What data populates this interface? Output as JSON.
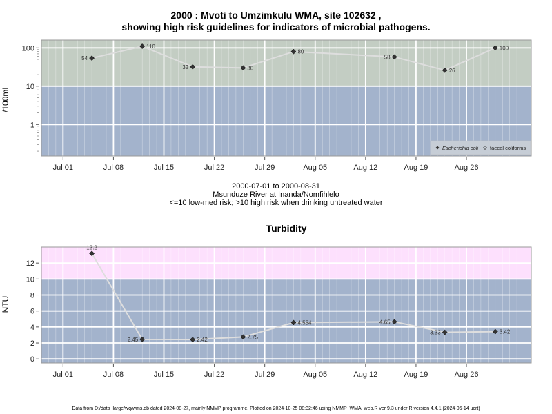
{
  "title_line1": "2000 : Mvoti to Umzimkulu WMA, site 102632 ,",
  "title_line2": "showing high risk guidelines for indicators of microbial pathogens.",
  "middle": {
    "date_range": "2000-07-01 to 2000-08-31",
    "site_name": "Msunduze River at Inanda/Nomfihlelo",
    "risk_note": "<=10 low-med risk; >10 high risk when drinking untreated water"
  },
  "turbidity_title": "Turbidity",
  "footer": "Data from D:/data_large/wq/wms.db dated 2024-08-27, mainly NMMP programme. Plotted on 2024-10-25 08:32:46 using NMMP_WMA_web.R ver 9.3 under R version 4.4.1 (2024-06-14 ucrt)",
  "colors": {
    "low_band": "#a3b3cc",
    "high_band_micro": "#c3cdc3",
    "high_band_turb": "#fde0fd",
    "line": "#dedede",
    "grid": "#ffffff",
    "marker": "#333333"
  },
  "chart_data": [
    {
      "type": "line",
      "panel": "microbial",
      "ylabel": "/100mL",
      "y_scale": "log",
      "ylim": [
        0.15,
        160
      ],
      "y_ticks": [
        1,
        10,
        100
      ],
      "y_tick_labels": [
        "1",
        "10",
        "100"
      ],
      "threshold": 10,
      "xlim": [
        "2000-06-28",
        "2000-09-04"
      ],
      "x_ticks": [
        "2000-07-01",
        "2000-07-08",
        "2000-07-15",
        "2000-07-22",
        "2000-07-29",
        "2000-08-05",
        "2000-08-12",
        "2000-08-19",
        "2000-08-26"
      ],
      "x_tick_labels": [
        "Jul 01",
        "Jul 08",
        "Jul 15",
        "Jul 22",
        "Jul 29",
        "Aug 05",
        "Aug 12",
        "Aug 19",
        "Aug 26"
      ],
      "grid": true,
      "legend_position": "bottom-right",
      "legend": [
        {
          "label": "Escherichia coli",
          "style": "filled-diamond",
          "italic": true
        },
        {
          "label": "faecal coliforms",
          "style": "open-diamond",
          "italic": false
        }
      ],
      "series": [
        {
          "name": "Escherichia coli",
          "points": [
            {
              "x": "2000-07-05",
              "y": 54,
              "label": "54",
              "label_side": "left"
            },
            {
              "x": "2000-07-12",
              "y": 110,
              "label": "110",
              "label_side": "right"
            },
            {
              "x": "2000-07-19",
              "y": 32,
              "label": "32",
              "label_side": "left"
            },
            {
              "x": "2000-07-26",
              "y": 30,
              "label": "30",
              "label_side": "right"
            },
            {
              "x": "2000-08-02",
              "y": 80,
              "label": "80",
              "label_side": "right"
            },
            {
              "x": "2000-08-16",
              "y": 58,
              "label": "58",
              "label_side": "left"
            },
            {
              "x": "2000-08-23",
              "y": 26,
              "label": "26",
              "label_side": "right"
            },
            {
              "x": "2000-08-30",
              "y": 100,
              "label": "100",
              "label_side": "right"
            }
          ]
        }
      ]
    },
    {
      "type": "line",
      "panel": "turbidity",
      "ylabel": "NTU",
      "y_scale": "linear",
      "ylim": [
        -0.5,
        14
      ],
      "y_ticks": [
        0,
        2,
        4,
        6,
        8,
        10,
        12
      ],
      "y_tick_labels": [
        "0",
        "2",
        "4",
        "6",
        "8",
        "10",
        "12"
      ],
      "threshold": 10,
      "xlim": [
        "2000-06-28",
        "2000-09-04"
      ],
      "x_ticks": [
        "2000-07-01",
        "2000-07-08",
        "2000-07-15",
        "2000-07-22",
        "2000-07-29",
        "2000-08-05",
        "2000-08-12",
        "2000-08-19",
        "2000-08-26"
      ],
      "x_tick_labels": [
        "Jul 01",
        "Jul 08",
        "Jul 15",
        "Jul 22",
        "Jul 29",
        "Aug 05",
        "Aug 12",
        "Aug 19",
        "Aug 26"
      ],
      "grid": true,
      "series": [
        {
          "name": "",
          "points": [
            {
              "x": "2000-07-05",
              "y": 13.2,
              "label": "13.2",
              "label_side": "top"
            },
            {
              "x": "2000-07-12",
              "y": 2.45,
              "label": "2.45",
              "label_side": "left"
            },
            {
              "x": "2000-07-19",
              "y": 2.42,
              "label": "2.42",
              "label_side": "right"
            },
            {
              "x": "2000-07-26",
              "y": 2.75,
              "label": "2.75",
              "label_side": "right"
            },
            {
              "x": "2000-08-02",
              "y": 4.554,
              "label": "4.554",
              "label_side": "right"
            },
            {
              "x": "2000-08-16",
              "y": 4.65,
              "label": "4.65",
              "label_side": "left"
            },
            {
              "x": "2000-08-23",
              "y": 3.33,
              "label": "3.33",
              "label_side": "left"
            },
            {
              "x": "2000-08-30",
              "y": 3.42,
              "label": "3.42",
              "label_side": "right"
            }
          ]
        }
      ]
    }
  ]
}
